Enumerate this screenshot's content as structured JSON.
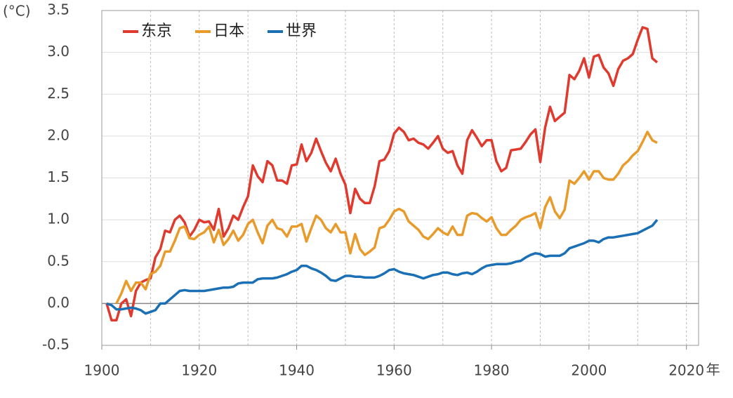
{
  "chart_data": {
    "type": "line",
    "y_unit": "(°C)",
    "x_unit": "年",
    "xlim": [
      1900,
      2022.5
    ],
    "xticks": [
      1900,
      1920,
      1940,
      1960,
      1980,
      2000,
      2020
    ],
    "x_minor_grid": [
      1910,
      1930,
      1950,
      1970,
      1990,
      2010
    ],
    "ylim": [
      -0.5,
      3.5
    ],
    "yticks": [
      {
        "value": -0.5,
        "label": "-0.5"
      },
      {
        "value": 0,
        "label": "0.0"
      },
      0.5,
      {
        "value": 1,
        "label": "1.0"
      },
      1.5,
      {
        "value": 2,
        "label": "2.0"
      },
      2.5,
      {
        "value": 3,
        "label": "3.0"
      },
      3.5
    ],
    "grid": true,
    "legend": "upper left",
    "x": [
      1901,
      1902,
      1903,
      1904,
      1905,
      1906,
      1907,
      1908,
      1909,
      1910,
      1911,
      1912,
      1913,
      1914,
      1915,
      1916,
      1917,
      1918,
      1919,
      1920,
      1921,
      1922,
      1923,
      1924,
      1925,
      1926,
      1927,
      1928,
      1929,
      1930,
      1931,
      1932,
      1933,
      1934,
      1935,
      1936,
      1937,
      1938,
      1939,
      1940,
      1941,
      1942,
      1943,
      1944,
      1945,
      1946,
      1947,
      1948,
      1949,
      1950,
      1951,
      1952,
      1953,
      1954,
      1955,
      1956,
      1957,
      1958,
      1959,
      1960,
      1961,
      1962,
      1963,
      1964,
      1965,
      1966,
      1967,
      1968,
      1969,
      1970,
      1971,
      1972,
      1973,
      1974,
      1975,
      1976,
      1977,
      1978,
      1979,
      1980,
      1981,
      1982,
      1983,
      1984,
      1985,
      1986,
      1987,
      1988,
      1989,
      1990,
      1991,
      1992,
      1993,
      1994,
      1995,
      1996,
      1997,
      1998,
      1999,
      2000,
      2001,
      2002,
      2003,
      2004,
      2005,
      2006,
      2007,
      2008,
      2009,
      2010,
      2011,
      2012,
      2013,
      2014
    ],
    "series": [
      {
        "name": "东京",
        "color": "#e03a2f",
        "values": [
          0,
          -0.2,
          -0.2,
          0,
          0.05,
          -0.15,
          0.15,
          0.25,
          0.28,
          0.3,
          0.55,
          0.65,
          0.87,
          0.85,
          1.0,
          1.05,
          0.97,
          0.8,
          0.88,
          1.0,
          0.97,
          0.98,
          0.88,
          1.13,
          0.8,
          0.9,
          1.05,
          1.0,
          1.15,
          1.28,
          1.65,
          1.52,
          1.45,
          1.7,
          1.65,
          1.47,
          1.47,
          1.43,
          1.65,
          1.66,
          1.9,
          1.7,
          1.8,
          1.97,
          1.82,
          1.68,
          1.58,
          1.73,
          1.55,
          1.42,
          1.08,
          1.37,
          1.25,
          1.2,
          1.2,
          1.4,
          1.7,
          1.72,
          1.82,
          2.03,
          2.1,
          2.05,
          1.95,
          1.97,
          1.92,
          1.9,
          1.85,
          1.92,
          2.0,
          1.85,
          1.8,
          1.82,
          1.65,
          1.55,
          1.95,
          2.07,
          1.98,
          1.88,
          1.95,
          1.95,
          1.7,
          1.58,
          1.62,
          1.83,
          1.84,
          1.85,
          1.93,
          2.02,
          2.08,
          1.69,
          2.1,
          2.35,
          2.18,
          2.23,
          2.28,
          2.73,
          2.68,
          2.78,
          2.93,
          2.7,
          2.95,
          2.97,
          2.82,
          2.75,
          2.6,
          2.8,
          2.9,
          2.93,
          2.98,
          3.15,
          3.3,
          3.28,
          2.93,
          2.88
        ]
      },
      {
        "name": "日本",
        "color": "#e89b2a",
        "values": [
          null,
          null,
          0,
          0.12,
          0.27,
          0.15,
          0.25,
          0.25,
          0.17,
          0.35,
          0.38,
          0.45,
          0.62,
          0.62,
          0.75,
          0.9,
          0.92,
          0.78,
          0.77,
          0.82,
          0.85,
          0.92,
          0.73,
          0.88,
          0.7,
          0.77,
          0.87,
          0.75,
          0.82,
          0.95,
          1.0,
          0.85,
          0.72,
          0.93,
          1.0,
          0.9,
          0.88,
          0.8,
          0.92,
          0.92,
          0.95,
          0.74,
          0.9,
          1.05,
          1.0,
          0.9,
          0.85,
          0.95,
          0.85,
          0.85,
          0.6,
          0.83,
          0.65,
          0.58,
          0.62,
          0.67,
          0.9,
          0.92,
          1.0,
          1.1,
          1.13,
          1.1,
          0.98,
          0.93,
          0.88,
          0.8,
          0.77,
          0.83,
          0.9,
          0.85,
          0.82,
          0.92,
          0.82,
          0.82,
          1.05,
          1.08,
          1.07,
          1.02,
          0.98,
          1.03,
          0.9,
          0.82,
          0.82,
          0.88,
          0.93,
          1.0,
          1.03,
          1.05,
          1.08,
          0.9,
          1.15,
          1.27,
          1.1,
          1.02,
          1.12,
          1.47,
          1.43,
          1.5,
          1.58,
          1.48,
          1.58,
          1.58,
          1.5,
          1.48,
          1.48,
          1.55,
          1.65,
          1.7,
          1.77,
          1.82,
          1.93,
          2.05,
          1.95,
          1.92
        ]
      },
      {
        "name": "世界",
        "color": "#1a6fb5",
        "values": [
          0,
          -0.02,
          -0.07,
          -0.07,
          -0.06,
          -0.05,
          -0.06,
          -0.08,
          -0.12,
          -0.1,
          -0.08,
          0,
          0,
          0.05,
          0.1,
          0.15,
          0.16,
          0.15,
          0.15,
          0.15,
          0.15,
          0.16,
          0.17,
          0.18,
          0.19,
          0.19,
          0.2,
          0.24,
          0.25,
          0.25,
          0.25,
          0.29,
          0.3,
          0.3,
          0.3,
          0.31,
          0.33,
          0.35,
          0.38,
          0.4,
          0.45,
          0.45,
          0.42,
          0.4,
          0.37,
          0.33,
          0.28,
          0.27,
          0.3,
          0.33,
          0.33,
          0.32,
          0.32,
          0.31,
          0.31,
          0.31,
          0.33,
          0.36,
          0.4,
          0.41,
          0.38,
          0.36,
          0.35,
          0.34,
          0.32,
          0.3,
          0.32,
          0.34,
          0.35,
          0.37,
          0.37,
          0.35,
          0.34,
          0.36,
          0.37,
          0.35,
          0.38,
          0.42,
          0.45,
          0.46,
          0.47,
          0.47,
          0.47,
          0.48,
          0.5,
          0.51,
          0.55,
          0.58,
          0.6,
          0.59,
          0.56,
          0.57,
          0.57,
          0.57,
          0.6,
          0.66,
          0.68,
          0.7,
          0.72,
          0.75,
          0.75,
          0.73,
          0.77,
          0.79,
          0.79,
          0.8,
          0.81,
          0.82,
          0.83,
          0.84,
          0.87,
          0.9,
          0.93,
          1.0
        ]
      }
    ]
  }
}
